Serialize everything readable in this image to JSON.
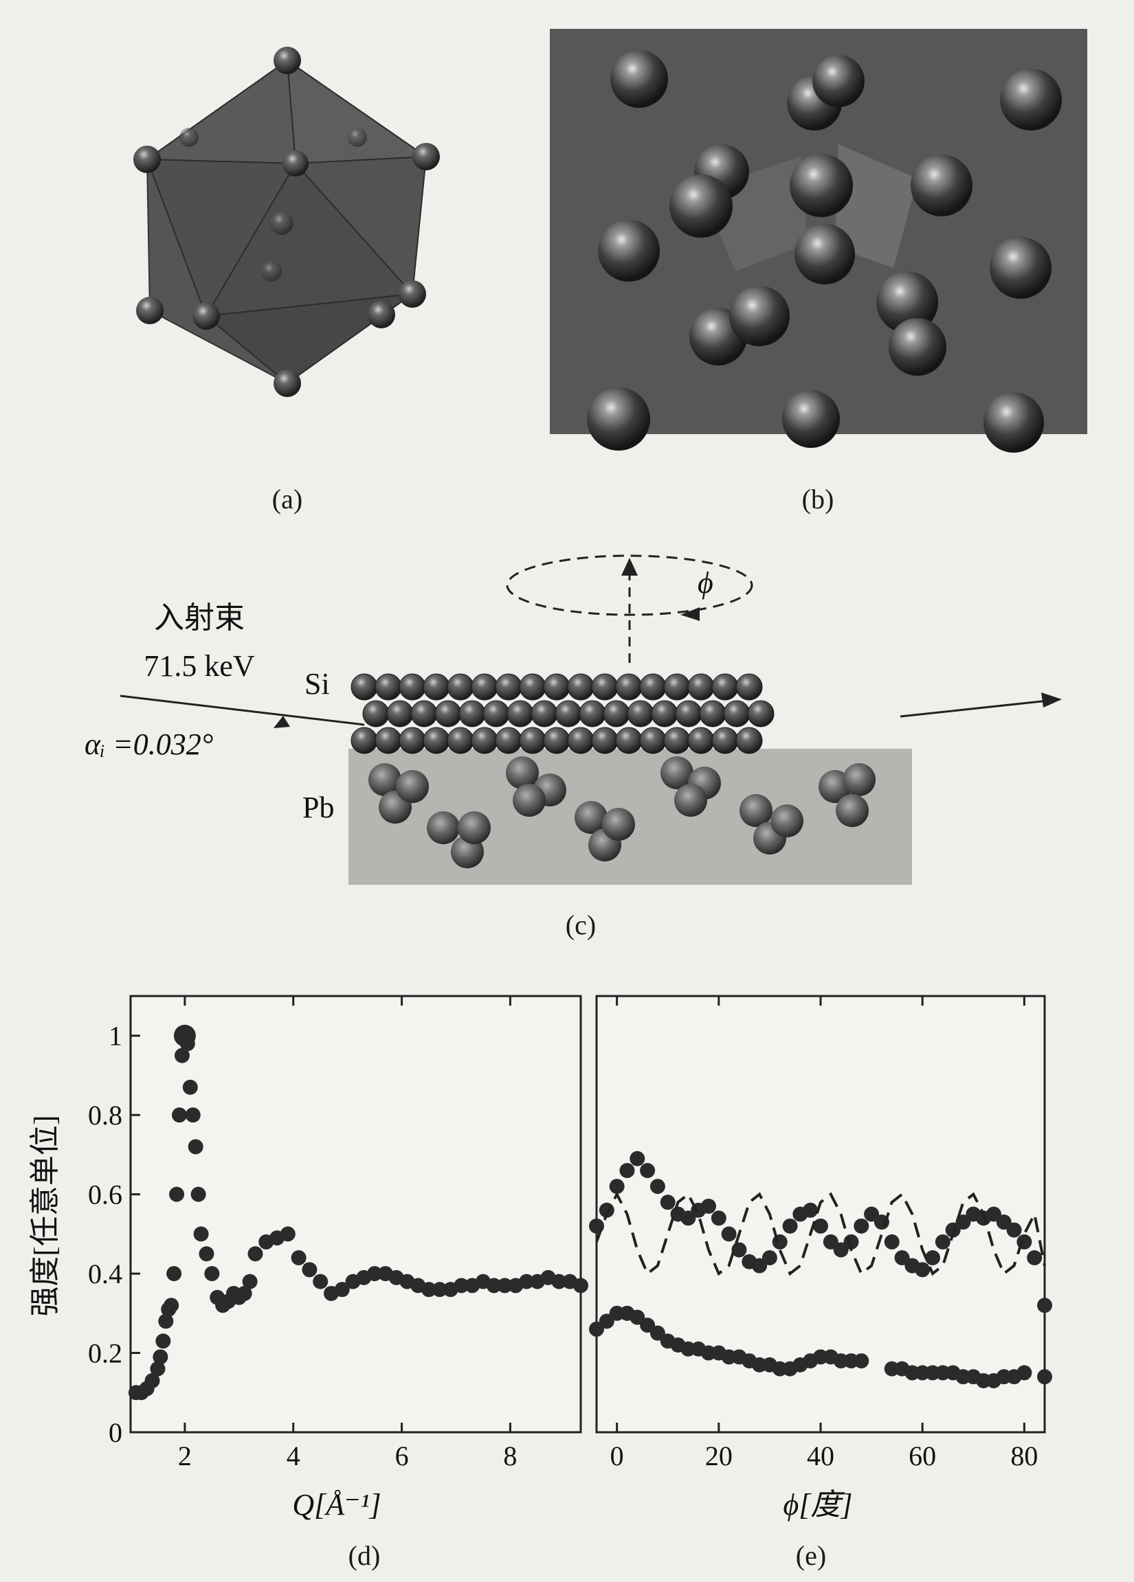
{
  "panels": {
    "a": {
      "caption": "(a)"
    },
    "b": {
      "caption": "(b)"
    },
    "c": {
      "caption": "(c)",
      "beam_label": "入射束",
      "energy_label": "71.5 keV",
      "angle_label": "αᵢ =0.032°",
      "rotation_label": "ϕ",
      "layer_top": "Si",
      "layer_bottom": "Pb"
    },
    "d": {
      "caption": "(d)"
    },
    "e": {
      "caption": "(e)"
    }
  },
  "chart_data": [
    {
      "type": "scatter",
      "panel": "d",
      "xlabel": "Q[Å⁻¹]",
      "ylabel": "强度[任意单位]",
      "xlim": [
        1,
        9.3
      ],
      "ylim": [
        0,
        1.1
      ],
      "xticks": [
        "2",
        "4",
        "6",
        "8"
      ],
      "yticks": [
        "0",
        "0.2",
        "0.4",
        "0.6",
        "0.8",
        "1"
      ],
      "series": [
        {
          "x": [
            1.1,
            1.2,
            1.3,
            1.4,
            1.5,
            1.55,
            1.6,
            1.65,
            1.7,
            1.75,
            1.8,
            1.85,
            1.9,
            1.95,
            2.0,
            2.05,
            2.1,
            2.15,
            2.2,
            2.25,
            2.3,
            2.4,
            2.5,
            2.6,
            2.7,
            2.8,
            2.9,
            3.0,
            3.1,
            3.2,
            3.3,
            3.5,
            3.7,
            3.9,
            4.1,
            4.3,
            4.5,
            4.7,
            4.9,
            5.1,
            5.3,
            5.5,
            5.7,
            5.9,
            6.1,
            6.3,
            6.5,
            6.7,
            6.9,
            7.1,
            7.3,
            7.5,
            7.7,
            7.9,
            8.1,
            8.3,
            8.5,
            8.7,
            8.9,
            9.1,
            9.3
          ],
          "y": [
            0.1,
            0.1,
            0.11,
            0.13,
            0.16,
            0.19,
            0.23,
            0.28,
            0.31,
            0.32,
            0.4,
            0.6,
            0.8,
            0.95,
            1.0,
            0.98,
            0.87,
            0.8,
            0.72,
            0.6,
            0.5,
            0.45,
            0.4,
            0.34,
            0.32,
            0.33,
            0.35,
            0.34,
            0.35,
            0.38,
            0.45,
            0.48,
            0.49,
            0.5,
            0.44,
            0.41,
            0.38,
            0.35,
            0.36,
            0.38,
            0.39,
            0.4,
            0.4,
            0.39,
            0.38,
            0.37,
            0.36,
            0.36,
            0.36,
            0.37,
            0.37,
            0.38,
            0.37,
            0.37,
            0.37,
            0.38,
            0.38,
            0.39,
            0.38,
            0.38,
            0.37
          ]
        }
      ]
    },
    {
      "type": "line",
      "panel": "e",
      "xlabel": "ϕ[度]",
      "xlim": [
        -4,
        84
      ],
      "ylim": [
        0,
        1.1
      ],
      "xticks": [
        "0",
        "20",
        "40",
        "60",
        "80"
      ],
      "series": [
        {
          "style": "dots",
          "x": [
            -4,
            -2,
            0,
            2,
            4,
            6,
            8,
            10,
            12,
            14,
            16,
            18,
            20,
            22,
            24,
            26,
            28,
            30,
            32,
            34,
            36,
            38,
            40,
            42,
            44,
            46,
            48,
            50,
            52,
            54,
            56,
            58,
            60,
            62,
            64,
            66,
            68,
            70,
            72,
            74,
            76,
            78,
            80,
            82,
            84
          ],
          "y": [
            0.52,
            0.56,
            0.62,
            0.66,
            0.69,
            0.66,
            0.62,
            0.58,
            0.55,
            0.54,
            0.56,
            0.57,
            0.54,
            0.5,
            0.46,
            0.43,
            0.42,
            0.44,
            0.48,
            0.52,
            0.55,
            0.56,
            0.52,
            0.48,
            0.46,
            0.48,
            0.52,
            0.55,
            0.53,
            0.48,
            0.44,
            0.42,
            0.41,
            0.44,
            0.48,
            0.51,
            0.53,
            0.55,
            0.54,
            0.55,
            0.53,
            0.51,
            0.48,
            0.44,
            0.32
          ]
        },
        {
          "style": "dashed",
          "x": [
            -4,
            -2,
            0,
            2,
            4,
            6,
            8,
            10,
            12,
            14,
            16,
            18,
            20,
            22,
            24,
            26,
            28,
            30,
            32,
            34,
            36,
            38,
            40,
            42,
            44,
            46,
            48,
            50,
            52,
            54,
            56,
            58,
            60,
            62,
            64,
            66,
            68,
            70,
            72,
            74,
            76,
            78,
            80,
            82,
            84
          ],
          "y": [
            0.48,
            0.55,
            0.6,
            0.55,
            0.46,
            0.4,
            0.42,
            0.5,
            0.58,
            0.6,
            0.55,
            0.46,
            0.4,
            0.42,
            0.5,
            0.58,
            0.6,
            0.55,
            0.46,
            0.4,
            0.42,
            0.5,
            0.58,
            0.6,
            0.55,
            0.46,
            0.4,
            0.42,
            0.5,
            0.58,
            0.6,
            0.55,
            0.46,
            0.4,
            0.42,
            0.5,
            0.58,
            0.6,
            0.55,
            0.46,
            0.4,
            0.42,
            0.5,
            0.55,
            0.42
          ]
        },
        {
          "style": "dots",
          "x": [
            -4,
            -2,
            0,
            2,
            4,
            6,
            8,
            10,
            12,
            14,
            16,
            18,
            20,
            22,
            24,
            26,
            28,
            30,
            32,
            34,
            36,
            38,
            40,
            42,
            44,
            46,
            48,
            54,
            56,
            58,
            60,
            62,
            64,
            66,
            68,
            70,
            72,
            74,
            76,
            78,
            80,
            84
          ],
          "y": [
            0.26,
            0.28,
            0.3,
            0.3,
            0.29,
            0.27,
            0.25,
            0.23,
            0.22,
            0.21,
            0.21,
            0.2,
            0.2,
            0.19,
            0.19,
            0.18,
            0.17,
            0.17,
            0.16,
            0.16,
            0.17,
            0.18,
            0.19,
            0.19,
            0.18,
            0.18,
            0.18,
            0.16,
            0.16,
            0.15,
            0.15,
            0.15,
            0.15,
            0.15,
            0.14,
            0.14,
            0.13,
            0.13,
            0.14,
            0.14,
            0.15,
            0.14
          ]
        }
      ]
    }
  ]
}
